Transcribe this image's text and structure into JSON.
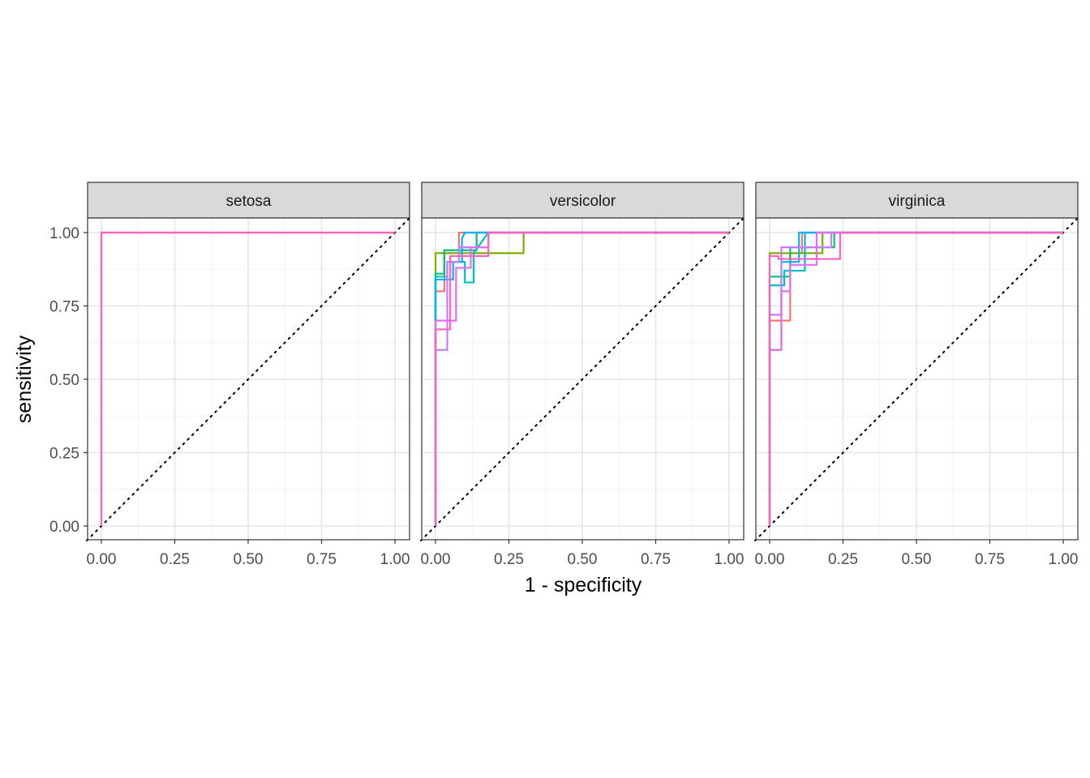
{
  "chart_data": {
    "type": "line",
    "xlabel": "1 - specificity",
    "ylabel": "sensitivity",
    "xlim": [
      0,
      1
    ],
    "ylim": [
      0,
      1
    ],
    "x_ticks": [
      "0.00",
      "0.25",
      "0.50",
      "0.75",
      "1.00"
    ],
    "y_ticks": [
      "0.00",
      "0.25",
      "0.50",
      "0.75",
      "1.00"
    ],
    "grid": true,
    "diagonal_reference": "dotted",
    "colors": [
      "#F8766D",
      "#A3A500",
      "#00BF7D",
      "#00B0F6",
      "#E76BF3",
      "#FF61C3",
      "#7CAE00",
      "#00BFC4",
      "#C77CFF"
    ],
    "panels": [
      {
        "label": "setosa",
        "series": [
          {
            "color": "#F8766D",
            "points": [
              [
                0,
                0
              ],
              [
                0,
                1
              ],
              [
                1,
                1
              ]
            ]
          },
          {
            "color": "#FF61C3",
            "points": [
              [
                0,
                0
              ],
              [
                0,
                1
              ],
              [
                1,
                1
              ]
            ]
          }
        ]
      },
      {
        "label": "versicolor",
        "series": [
          {
            "color": "#F8766D",
            "points": [
              [
                0,
                0
              ],
              [
                0,
                0.8
              ],
              [
                0.03,
                0.8
              ],
              [
                0.03,
                0.93
              ],
              [
                0.08,
                0.93
              ],
              [
                0.08,
                1
              ],
              [
                1,
                1
              ]
            ]
          },
          {
            "color": "#7CAE00",
            "points": [
              [
                0,
                0
              ],
              [
                0,
                0.93
              ],
              [
                0.3,
                0.93
              ],
              [
                0.3,
                1
              ],
              [
                1,
                1
              ]
            ]
          },
          {
            "color": "#00BF7D",
            "points": [
              [
                0,
                0
              ],
              [
                0,
                0.86
              ],
              [
                0.03,
                0.86
              ],
              [
                0.03,
                0.94
              ],
              [
                0.14,
                0.94
              ],
              [
                0.14,
                1
              ],
              [
                1,
                1
              ]
            ]
          },
          {
            "color": "#00BFC4",
            "points": [
              [
                0,
                0
              ],
              [
                0,
                0.85
              ],
              [
                0.04,
                0.85
              ],
              [
                0.04,
                0.9
              ],
              [
                0.1,
                0.9
              ],
              [
                0.1,
                0.83
              ],
              [
                0.13,
                0.83
              ],
              [
                0.13,
                0.93
              ],
              [
                0.18,
                1
              ],
              [
                1,
                1
              ]
            ]
          },
          {
            "color": "#00B0F6",
            "points": [
              [
                0,
                0
              ],
              [
                0,
                0.84
              ],
              [
                0.06,
                0.84
              ],
              [
                0.06,
                0.9
              ],
              [
                0.09,
                0.9
              ],
              [
                0.09,
                0.98
              ],
              [
                0.1,
                1
              ],
              [
                1,
                1
              ]
            ]
          },
          {
            "color": "#C77CFF",
            "points": [
              [
                0,
                0
              ],
              [
                0,
                0.6
              ],
              [
                0.04,
                0.6
              ],
              [
                0.04,
                0.9
              ],
              [
                0.08,
                0.9
              ],
              [
                0.08,
                0.95
              ],
              [
                0.18,
                0.95
              ],
              [
                0.18,
                1
              ],
              [
                1,
                1
              ]
            ]
          },
          {
            "color": "#E76BF3",
            "points": [
              [
                0,
                0
              ],
              [
                0,
                0.7
              ],
              [
                0.07,
                0.7
              ],
              [
                0.07,
                0.88
              ],
              [
                0.12,
                0.88
              ],
              [
                0.12,
                0.95
              ],
              [
                0.18,
                0.95
              ],
              [
                0.18,
                1
              ],
              [
                1,
                1
              ]
            ]
          },
          {
            "color": "#FF61C3",
            "points": [
              [
                0,
                0
              ],
              [
                0,
                0.67
              ],
              [
                0.05,
                0.67
              ],
              [
                0.05,
                0.92
              ],
              [
                0.18,
                0.92
              ],
              [
                0.18,
                1
              ],
              [
                1,
                1
              ]
            ]
          }
        ]
      },
      {
        "label": "virginica",
        "series": [
          {
            "color": "#F8766D",
            "points": [
              [
                0,
                0
              ],
              [
                0,
                0.7
              ],
              [
                0.07,
                0.7
              ],
              [
                0.07,
                0.93
              ],
              [
                0.11,
                0.93
              ],
              [
                0.11,
                1
              ],
              [
                1,
                1
              ]
            ]
          },
          {
            "color": "#7CAE00",
            "points": [
              [
                0,
                0
              ],
              [
                0,
                0.93
              ],
              [
                0.18,
                0.93
              ],
              [
                0.18,
                1
              ],
              [
                1,
                1
              ]
            ]
          },
          {
            "color": "#00BF7D",
            "points": [
              [
                0,
                0
              ],
              [
                0,
                0.85
              ],
              [
                0.07,
                0.85
              ],
              [
                0.07,
                0.95
              ],
              [
                0.22,
                0.95
              ],
              [
                0.22,
                1
              ],
              [
                1,
                1
              ]
            ]
          },
          {
            "color": "#00BFC4",
            "points": [
              [
                0,
                0
              ],
              [
                0,
                0.82
              ],
              [
                0.05,
                0.82
              ],
              [
                0.05,
                0.87
              ],
              [
                0.12,
                0.87
              ],
              [
                0.12,
                1
              ],
              [
                1,
                1
              ]
            ]
          },
          {
            "color": "#00B0F6",
            "points": [
              [
                0,
                0
              ],
              [
                0,
                0.6
              ],
              [
                0.04,
                0.6
              ],
              [
                0.04,
                0.9
              ],
              [
                0.1,
                0.9
              ],
              [
                0.1,
                1
              ],
              [
                1,
                1
              ]
            ]
          },
          {
            "color": "#C77CFF",
            "points": [
              [
                0,
                0
              ],
              [
                0,
                0.72
              ],
              [
                0.04,
                0.72
              ],
              [
                0.04,
                0.95
              ],
              [
                0.21,
                0.95
              ],
              [
                0.21,
                1
              ],
              [
                1,
                1
              ]
            ]
          },
          {
            "color": "#E76BF3",
            "points": [
              [
                0,
                0
              ],
              [
                0,
                0.6
              ],
              [
                0.04,
                0.6
              ],
              [
                0.04,
                0.8
              ],
              [
                0.07,
                0.8
              ],
              [
                0.07,
                0.89
              ],
              [
                0.16,
                0.89
              ],
              [
                0.16,
                1
              ],
              [
                1,
                1
              ]
            ]
          },
          {
            "color": "#FF61C3",
            "points": [
              [
                0,
                0
              ],
              [
                0,
                0.92
              ],
              [
                0.03,
                0.92
              ],
              [
                0.03,
                0.91
              ],
              [
                0.24,
                0.91
              ],
              [
                0.24,
                1
              ],
              [
                1,
                1
              ]
            ]
          }
        ]
      }
    ]
  }
}
